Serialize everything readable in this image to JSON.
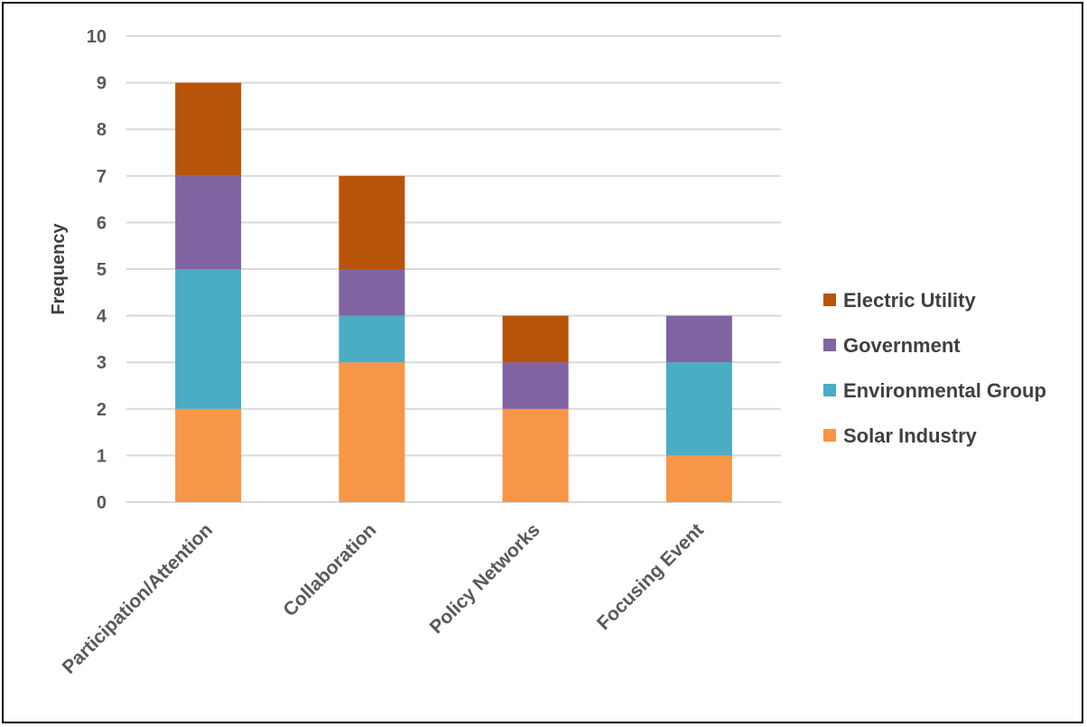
{
  "chart_data": {
    "type": "bar",
    "stacked": true,
    "categories": [
      "Participation/Attention",
      "Collaboration",
      "Policy Networks",
      "Focusing Event"
    ],
    "series": [
      {
        "name": "Solar Industry",
        "color": "#F79646",
        "values": [
          2,
          3,
          2,
          1
        ]
      },
      {
        "name": "Environmental Group",
        "color": "#4BACC6",
        "values": [
          3,
          1,
          0,
          2
        ]
      },
      {
        "name": "Government",
        "color": "#8064A2",
        "values": [
          2,
          1,
          1,
          1
        ]
      },
      {
        "name": "Electric Utility",
        "color": "#B7540A",
        "values": [
          2,
          2,
          1,
          0
        ]
      }
    ],
    "ylabel": "Frequency",
    "ylim": [
      0,
      10
    ],
    "yticks": [
      "0",
      "1",
      "2",
      "3",
      "4",
      "5",
      "6",
      "7",
      "8",
      "9",
      "10"
    ],
    "grid": true,
    "legend_position": "right",
    "legend_order": [
      "Electric Utility",
      "Government",
      "Environmental Group",
      "Solar Industry"
    ]
  }
}
